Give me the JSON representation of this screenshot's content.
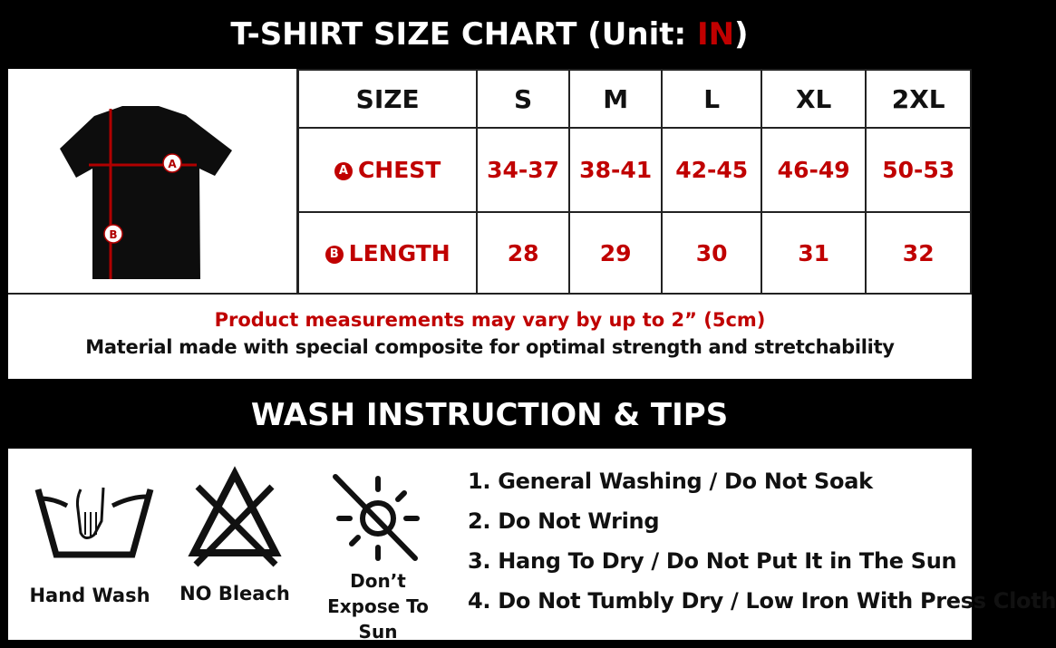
{
  "header": {
    "title_prefix": "T-SHIRT SIZE CHART (Unit: ",
    "unit": "IN",
    "title_suffix": ")"
  },
  "size_table": {
    "size_label": "SIZE",
    "sizes": [
      "S",
      "M",
      "L",
      "XL",
      "2XL"
    ],
    "rows": [
      {
        "marker": "A",
        "label": "CHEST",
        "values": [
          "34-37",
          "38-41",
          "42-45",
          "46-49",
          "50-53"
        ]
      },
      {
        "marker": "B",
        "label": "LENGTH",
        "values": [
          "28",
          "29",
          "30",
          "31",
          "32"
        ]
      }
    ]
  },
  "diagram": {
    "marker_a": "A",
    "marker_b": "B"
  },
  "notes": {
    "variance": "Product measurements may vary by up to 2” (5cm)",
    "material": "Material made with special composite for optimal strength and stretchability"
  },
  "wash": {
    "title": "WASH INSTRUCTION & TIPS",
    "icons": [
      {
        "icon": "hand-wash-icon",
        "label": "Hand Wash"
      },
      {
        "icon": "no-bleach-icon",
        "label": "NO Bleach"
      },
      {
        "icon": "no-sun-icon",
        "label": "Don’t Expose To Sun"
      }
    ],
    "tips": [
      "1. General Washing / Do Not Soak",
      "2. Do Not Wring",
      "3. Hang To Dry / Do Not Put It in The Sun",
      "4. Do Not Tumbly Dry / Low Iron With Press Cloth"
    ]
  },
  "colors": {
    "accent": "#c00000",
    "background": "#000000"
  }
}
